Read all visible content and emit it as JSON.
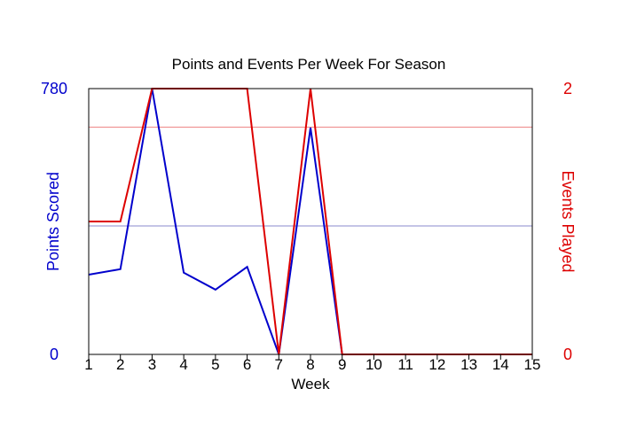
{
  "chart_data": {
    "type": "line",
    "title": "Points and Events Per Week For Season",
    "xlabel": "Week",
    "x": [
      1,
      2,
      3,
      4,
      5,
      6,
      7,
      8,
      9,
      10,
      11,
      12,
      13,
      14,
      15
    ],
    "x_ticks": [
      "1",
      "2",
      "3",
      "4",
      "5",
      "6",
      "7",
      "8",
      "9",
      "10",
      "11",
      "12",
      "13",
      "14",
      "15"
    ],
    "left_axis": {
      "label": "Points Scored",
      "color": "#0000cc",
      "ylim": [
        0,
        780
      ],
      "ticks": [
        "0",
        "780"
      ],
      "gridline_value": 377,
      "gridline_color": "#8888cc"
    },
    "right_axis": {
      "label": "Events Played",
      "color": "#dd0000",
      "ylim": [
        0,
        2
      ],
      "ticks": [
        "0",
        "2"
      ],
      "gridline_value": 1.71,
      "gridline_color": "#ee8888"
    },
    "series": [
      {
        "name": "Points Scored",
        "axis": "left",
        "color": "#0000cc",
        "values": [
          234,
          250,
          780,
          240,
          190,
          257,
          0,
          665,
          0,
          0,
          0,
          0,
          0,
          0,
          0
        ]
      },
      {
        "name": "Events Played",
        "axis": "right",
        "color": "#dd0000",
        "values": [
          1,
          1,
          2,
          2,
          2,
          2,
          0,
          2,
          0,
          0,
          0,
          0,
          0,
          0,
          0
        ]
      }
    ]
  }
}
